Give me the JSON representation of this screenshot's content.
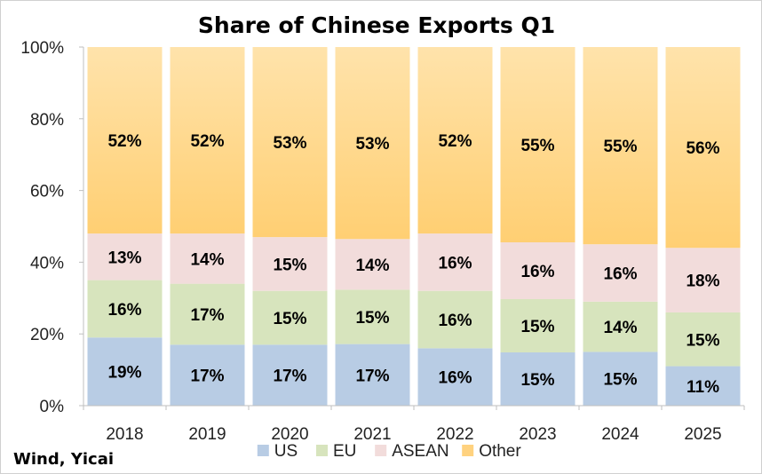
{
  "chart_data": {
    "type": "bar",
    "stacked": true,
    "title": "Share of Chinese Exports Q1",
    "categories": [
      "2018",
      "2019",
      "2020",
      "2021",
      "2022",
      "2023",
      "2024",
      "2025"
    ],
    "series": [
      {
        "name": "US",
        "color": "#b8cce4",
        "values": [
          19,
          17,
          17,
          17,
          16,
          15,
          15,
          11
        ]
      },
      {
        "name": "EU",
        "color": "#d7e4bd",
        "values": [
          16,
          17,
          15,
          15,
          16,
          15,
          14,
          15
        ]
      },
      {
        "name": "ASEAN",
        "color": "#f2dcdb",
        "values": [
          13,
          14,
          15,
          14,
          16,
          16,
          16,
          18
        ]
      },
      {
        "name": "Other",
        "color": "#ffd27f",
        "values": [
          52,
          52,
          53,
          53,
          52,
          55,
          55,
          56
        ]
      }
    ],
    "value_suffix": "%",
    "ylim": [
      0,
      100
    ],
    "yticks": [
      "0%",
      "20%",
      "40%",
      "60%",
      "80%",
      "100%"
    ],
    "grid": false,
    "legend_position": "bottom",
    "source": "Wind, Yicai"
  }
}
